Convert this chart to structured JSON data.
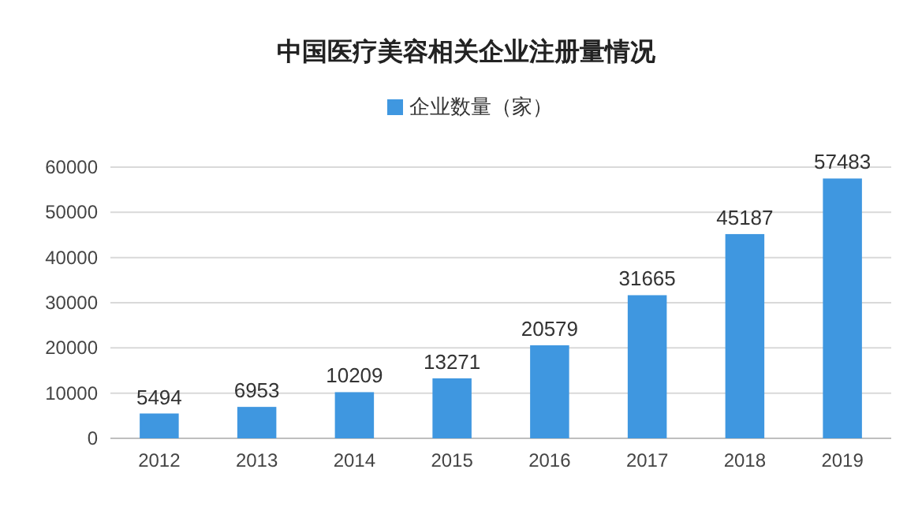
{
  "chart_data": {
    "type": "bar",
    "title": "中国医疗美容相关企业注册量情况",
    "categories": [
      "2012",
      "2013",
      "2014",
      "2015",
      "2016",
      "2017",
      "2018",
      "2019"
    ],
    "series": [
      {
        "name": "企业数量（家）",
        "color": "#3f97e0",
        "values": [
          5494,
          6953,
          10209,
          13271,
          20579,
          31665,
          45187,
          57483
        ]
      }
    ],
    "ylim": [
      0,
      60000
    ],
    "yticks": [
      0,
      10000,
      20000,
      30000,
      40000,
      50000,
      60000
    ],
    "grid": "y",
    "legend": "top",
    "data_labels": true
  }
}
